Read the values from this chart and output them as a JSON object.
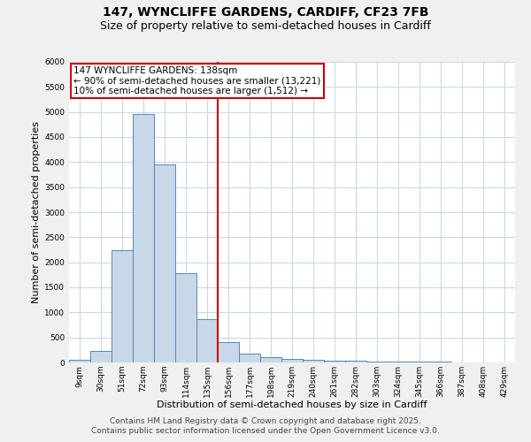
{
  "title_line1": "147, WYNCLIFFE GARDENS, CARDIFF, CF23 7FB",
  "title_line2": "Size of property relative to semi-detached houses in Cardiff",
  "xlabel": "Distribution of semi-detached houses by size in Cardiff",
  "ylabel": "Number of semi-detached properties",
  "categories": [
    "9sqm",
    "30sqm",
    "51sqm",
    "72sqm",
    "93sqm",
    "114sqm",
    "135sqm",
    "156sqm",
    "177sqm",
    "198sqm",
    "219sqm",
    "240sqm",
    "261sqm",
    "282sqm",
    "303sqm",
    "324sqm",
    "345sqm",
    "366sqm",
    "387sqm",
    "408sqm",
    "429sqm"
  ],
  "values": [
    50,
    230,
    2250,
    4950,
    3950,
    1780,
    860,
    400,
    185,
    100,
    65,
    50,
    40,
    30,
    10,
    10,
    10,
    10,
    5,
    5,
    5
  ],
  "bar_color": "#c8d8e8",
  "bar_edge_color": "#5588bb",
  "vline_color": "#cc0000",
  "annotation_line1": "147 WYNCLIFFE GARDENS: 138sqm",
  "annotation_line2": "← 90% of semi-detached houses are smaller (13,221)",
  "annotation_line3": "10% of semi-detached houses are larger (1,512) →",
  "annotation_box_color": "white",
  "annotation_box_edge_color": "#cc0000",
  "ylim": [
    0,
    6000
  ],
  "yticks": [
    0,
    500,
    1000,
    1500,
    2000,
    2500,
    3000,
    3500,
    4000,
    4500,
    5000,
    5500,
    6000
  ],
  "footer_line1": "Contains HM Land Registry data © Crown copyright and database right 2025.",
  "footer_line2": "Contains public sector information licensed under the Open Government Licence v3.0.",
  "background_color": "#f0f0f0",
  "plot_bg_color": "#ffffff",
  "grid_color": "#c8d8e8",
  "title_fontsize": 10,
  "subtitle_fontsize": 9,
  "axis_label_fontsize": 8,
  "tick_fontsize": 6.5,
  "annotation_fontsize": 7.5,
  "footer_fontsize": 6.5
}
